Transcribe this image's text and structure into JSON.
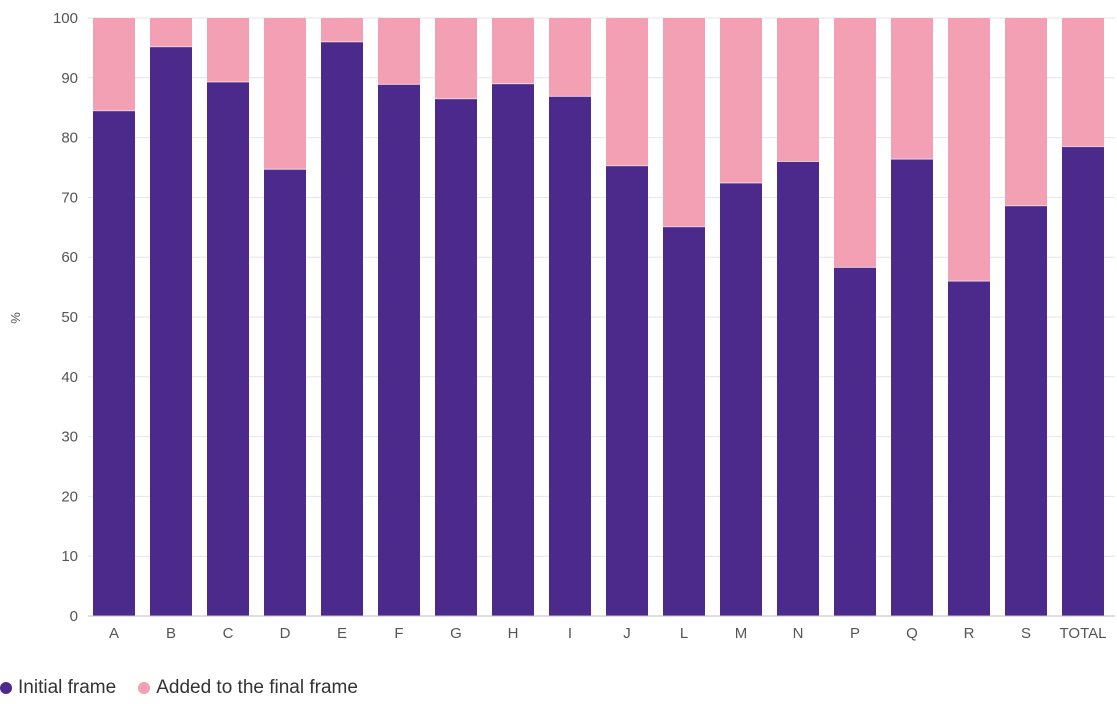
{
  "chart_data": {
    "type": "bar",
    "stacked": true,
    "categories": [
      "A",
      "B",
      "C",
      "D",
      "E",
      "F",
      "G",
      "H",
      "I",
      "J",
      "L",
      "M",
      "N",
      "P",
      "Q",
      "R",
      "S",
      "TOTAL"
    ],
    "series": [
      {
        "name": "Initial frame",
        "color": "#4b2a8c",
        "values": [
          84.5,
          95.2,
          89.3,
          74.7,
          96.0,
          88.9,
          86.5,
          89.0,
          86.9,
          75.3,
          65.1,
          72.4,
          76.0,
          58.3,
          76.4,
          56.0,
          68.6,
          78.5
        ]
      },
      {
        "name": "Added to the final frame",
        "color": "#f4a0b4",
        "values": [
          15.5,
          4.8,
          10.7,
          25.3,
          4.0,
          11.1,
          13.5,
          11.0,
          13.1,
          24.7,
          34.9,
          27.6,
          24.0,
          41.7,
          23.6,
          44.0,
          31.4,
          21.5
        ]
      }
    ],
    "title": "",
    "xlabel": "",
    "ylabel": "%",
    "ylim": [
      0,
      100
    ],
    "yticks": [
      "0",
      "10",
      "20",
      "30",
      "40",
      "50",
      "60",
      "70",
      "80",
      "90",
      "100"
    ],
    "grid": true,
    "legend_position": "bottom-left"
  }
}
